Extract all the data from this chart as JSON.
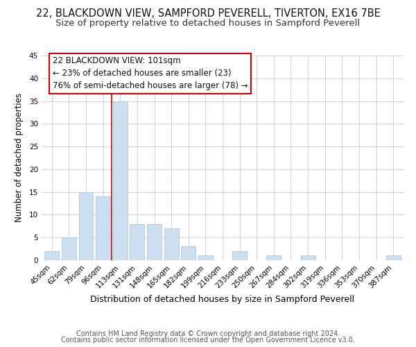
{
  "title": "22, BLACKDOWN VIEW, SAMPFORD PEVERELL, TIVERTON, EX16 7BE",
  "subtitle": "Size of property relative to detached houses in Sampford Peverell",
  "xlabel": "Distribution of detached houses by size in Sampford Peverell",
  "ylabel": "Number of detached properties",
  "bar_labels": [
    "45sqm",
    "62sqm",
    "79sqm",
    "96sqm",
    "113sqm",
    "131sqm",
    "148sqm",
    "165sqm",
    "182sqm",
    "199sqm",
    "216sqm",
    "233sqm",
    "250sqm",
    "267sqm",
    "284sqm",
    "302sqm",
    "319sqm",
    "336sqm",
    "353sqm",
    "370sqm",
    "387sqm"
  ],
  "bar_values": [
    2,
    5,
    15,
    14,
    35,
    8,
    8,
    7,
    3,
    1,
    0,
    2,
    0,
    1,
    0,
    1,
    0,
    0,
    0,
    0,
    1
  ],
  "bar_color": "#ccdff0",
  "bar_edge_color": "#adc8e0",
  "ylim": [
    0,
    45
  ],
  "yticks": [
    0,
    5,
    10,
    15,
    20,
    25,
    30,
    35,
    40,
    45
  ],
  "vline_x": 3.5,
  "vline_color": "#cc0000",
  "annotation_line1": "22 BLACKDOWN VIEW: 101sqm",
  "annotation_line2": "← 23% of detached houses are smaller (23)",
  "annotation_line3": "76% of semi-detached houses are larger (78) →",
  "footer_line1": "Contains HM Land Registry data © Crown copyright and database right 2024.",
  "footer_line2": "Contains public sector information licensed under the Open Government Licence v3.0.",
  "background_color": "#ffffff",
  "grid_color": "#cccccc",
  "title_fontsize": 10.5,
  "subtitle_fontsize": 9.5,
  "xlabel_fontsize": 9,
  "ylabel_fontsize": 8.5,
  "tick_fontsize": 7.5,
  "annotation_fontsize": 8.5,
  "footer_fontsize": 7
}
